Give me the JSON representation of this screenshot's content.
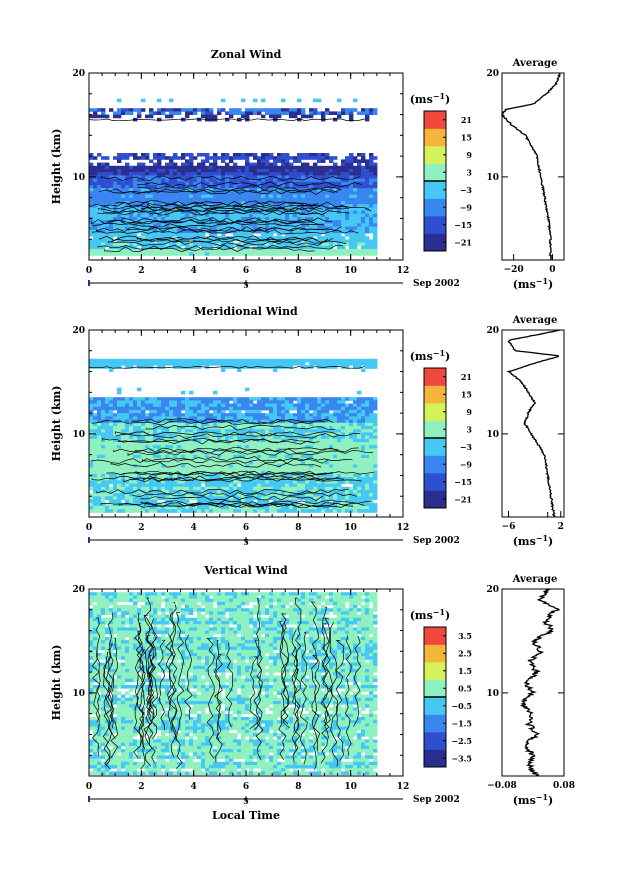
{
  "chart_data": [
    {
      "type": "heatmap",
      "title": "Zonal Wind",
      "ylabel": "Height (km)",
      "xlabel": "",
      "xlim": [
        0,
        12
      ],
      "ylim": [
        2,
        20
      ],
      "x_ticks": [
        "0",
        "2",
        "4",
        "6",
        "8",
        "10",
        "12"
      ],
      "y_ticks": [
        "10",
        "20"
      ],
      "date_label": "Sep 2002",
      "day_marker": "5",
      "colorbar": {
        "unit": "(ms",
        "unit_exp": "−1",
        "unit_close": ")",
        "levels": [
          "21",
          "15",
          "9",
          "3",
          "−3",
          "−9",
          "−15",
          "−21"
        ],
        "range": [
          -24,
          24
        ]
      },
      "data_extent_x": [
        0,
        11
      ],
      "profile": {
        "title": "Average",
        "xlabel": "(ms",
        "xlabel_exp": "−1",
        "xlabel_close": ")",
        "x_ticks": [
          "−20",
          "0"
        ],
        "xlim": [
          -26,
          6
        ],
        "heights": [
          2,
          4,
          6,
          8,
          10,
          12,
          14,
          15,
          16,
          16.5,
          17,
          18,
          19,
          20
        ],
        "values": [
          -1,
          -1,
          -2,
          -4,
          -6,
          -8,
          -14,
          -21,
          -26,
          -24,
          -10,
          -3,
          2,
          4
        ]
      }
    },
    {
      "type": "heatmap",
      "title": "Meridional Wind",
      "ylabel": "Height (km)",
      "xlabel": "",
      "xlim": [
        0,
        12
      ],
      "ylim": [
        2,
        20
      ],
      "x_ticks": [
        "0",
        "2",
        "4",
        "6",
        "8",
        "10",
        "12"
      ],
      "y_ticks": [
        "10",
        "20"
      ],
      "date_label": "Sep 2002",
      "day_marker": "5",
      "colorbar": {
        "unit": "(ms",
        "unit_exp": "−1",
        "unit_close": ")",
        "levels": [
          "21",
          "15",
          "9",
          "3",
          "−3",
          "−9",
          "−15",
          "−21"
        ],
        "range": [
          -24,
          24
        ]
      },
      "data_extent_x": [
        0,
        11
      ],
      "profile": {
        "title": "Average",
        "xlabel": "(ms",
        "xlabel_exp": "−1",
        "xlabel_close": ")",
        "x_ticks": [
          "−6",
          "2"
        ],
        "xlim": [
          -7,
          2.5
        ],
        "heights": [
          2,
          4,
          6,
          8,
          9,
          10,
          11,
          12,
          13,
          14,
          15,
          16,
          17,
          17.5,
          18,
          19,
          20
        ],
        "values": [
          1,
          0.5,
          0,
          -0.5,
          -1.5,
          -2.5,
          -3.5,
          -3,
          -2,
          -3,
          -4,
          -6,
          -1,
          2,
          -5,
          -6,
          2
        ]
      }
    },
    {
      "type": "heatmap",
      "title": "Vertical Wind",
      "ylabel": "Height (km)",
      "xlabel": "Local Time",
      "xlim": [
        0,
        12
      ],
      "ylim": [
        2,
        20
      ],
      "x_ticks": [
        "0",
        "2",
        "4",
        "6",
        "8",
        "10",
        "12"
      ],
      "y_ticks": [
        "10",
        "20"
      ],
      "date_label": "Sep 2002",
      "day_marker": "5",
      "colorbar": {
        "unit": "(ms",
        "unit_exp": "−1",
        "unit_close": ")",
        "levels": [
          "3.5",
          "2.5",
          "1.5",
          "0.5",
          "−0.5",
          "−1.5",
          "−2.5",
          "−3.5"
        ],
        "range": [
          -4,
          4
        ]
      },
      "data_extent_x": [
        0,
        11
      ],
      "profile": {
        "title": "Average",
        "xlabel": "(ms",
        "xlabel_exp": "−1",
        "xlabel_close": ")",
        "x_ticks": [
          "−0.08",
          "0.08"
        ],
        "xlim": [
          -0.08,
          0.08
        ],
        "heights": [
          2,
          3,
          4,
          5,
          6,
          7,
          8,
          9,
          10,
          11,
          12,
          13,
          14,
          15,
          16,
          17,
          18,
          19,
          20
        ],
        "values": [
          0.01,
          -0.01,
          0.0,
          -0.02,
          0.01,
          -0.01,
          0.0,
          -0.03,
          0.0,
          -0.02,
          0.01,
          -0.01,
          0.02,
          0.0,
          0.05,
          0.03,
          0.06,
          0.02,
          0.04
        ]
      }
    }
  ]
}
